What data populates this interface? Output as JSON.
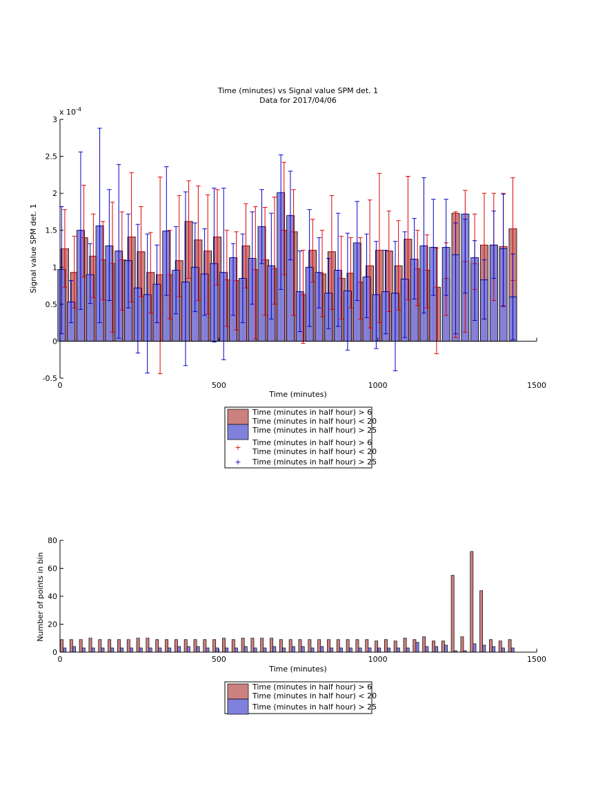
{
  "chart_data": [
    {
      "type": "bar",
      "title": "Time (minutes) vs Signal value SPM det. 1",
      "subtitle": "Data for 2017/04/06",
      "xlabel": "Time (minutes)",
      "ylabel": "Signal value SPM det. 1",
      "y_exponent_label": "x 10",
      "y_exponent": "-4",
      "xlim": [
        0,
        1500
      ],
      "ylim": [
        -0.5,
        3
      ],
      "xticks": [
        "0",
        "500",
        "1000",
        "1500"
      ],
      "yticks": [
        "-0.5",
        "0",
        "0.5",
        "1",
        "1.5",
        "2",
        "2.5",
        "3"
      ],
      "y_scale_factor": 0.0001,
      "grid": false,
      "legend_position": "below",
      "legend": [
        "Time (minutes in half hour) > 6",
        "Time (minutes in half hour) < 20",
        "Time (minutes in half hour) > 25",
        "Time (minutes in half hour) > 6",
        "Time (minutes in half hour) < 20",
        "Time (minutes in half hour) > 25"
      ],
      "colors": {
        "red_bar": "#cc8080",
        "red_err": "#dd0000",
        "blue_bar": "#8080dd",
        "blue_err": "#0000cc"
      },
      "x_red": [
        15,
        45,
        75,
        105,
        135,
        165,
        195,
        225,
        255,
        285,
        315,
        345,
        375,
        405,
        435,
        465,
        495,
        525,
        555,
        585,
        615,
        645,
        675,
        705,
        735,
        765,
        795,
        825,
        855,
        885,
        915,
        945,
        975,
        1005,
        1035,
        1065,
        1095,
        1125,
        1155,
        1185,
        1215,
        1245,
        1275,
        1305,
        1335,
        1365,
        1395,
        1425
      ],
      "series": [
        {
          "values": [
            1.25,
            0.93,
            1.4,
            1.15,
            1.1,
            1.05,
            1.1,
            1.41,
            1.21,
            0.93,
            0.9,
            0.9,
            1.09,
            1.62,
            1.37,
            1.22,
            1.41,
            0.83,
            0.82,
            1.29,
            0.97,
            1.1,
            0.98,
            1.5,
            1.48,
            0.63,
            1.23,
            0.91,
            1.21,
            0.85,
            0.92,
            0.8,
            1.02,
            1.23,
            1.22,
            1.02,
            1.38,
            0.98,
            0.96,
            0.73,
            0.85,
            1.73,
            1.08,
            1.05,
            1.3,
            1.3,
            1.28,
            1.52
          ],
          "err_low": [
            0.73,
            0.45,
            0.87,
            0.59,
            0.56,
            0.12,
            0.42,
            0.53,
            0.6,
            0.38,
            -0.44,
            0.3,
            0.6,
            0.85,
            0.55,
            0.37,
            0.76,
            0.2,
            0.15,
            0.72,
            0.03,
            0.35,
            0.5,
            0.9,
            0.35,
            -0.03,
            0.8,
            0.33,
            0.43,
            0.3,
            0.45,
            0.3,
            0.18,
            0.25,
            0.4,
            0.42,
            0.56,
            0.48,
            0.45,
            -0.17,
            0.35,
            0.05,
            0.12,
            0.7,
            0.3,
            0.55,
            0.48,
            0.82
          ],
          "err_high": [
            1.78,
            1.42,
            2.11,
            1.72,
            1.62,
            1.88,
            1.75,
            2.28,
            1.82,
            1.47,
            2.22,
            1.5,
            1.97,
            2.17,
            2.1,
            1.98,
            2.05,
            1.5,
            1.48,
            1.86,
            1.82,
            1.81,
            1.95,
            2.42,
            2.05,
            1.23,
            1.65,
            1.5,
            1.97,
            1.42,
            1.4,
            1.4,
            1.91,
            2.27,
            1.76,
            1.63,
            2.23,
            1.5,
            1.44,
            1.26,
            1.33,
            1.75,
            2.04,
            1.72,
            2.0,
            2.0,
            2.0,
            2.21
          ]
        },
        {
          "values": [
            0.97,
            0.53,
            1.5,
            0.9,
            1.56,
            1.29,
            1.22,
            1.09,
            0.72,
            0.63,
            0.77,
            1.49,
            0.96,
            0.8,
            1.0,
            0.91,
            1.05,
            0.93,
            1.13,
            0.85,
            1.12,
            1.55,
            1.02,
            2.01,
            1.7,
            0.67,
            1.0,
            0.93,
            0.65,
            0.96,
            0.68,
            1.33,
            0.87,
            0.63,
            0.67,
            0.65,
            0.84,
            1.11,
            1.29,
            1.27,
            1.27,
            1.17,
            1.72,
            1.13,
            0.83,
            1.3,
            1.25,
            0.6
          ],
          "err_low": [
            0.1,
            0.25,
            0.43,
            0.51,
            0.25,
            0.55,
            0.04,
            0.45,
            -0.16,
            -0.43,
            0.25,
            0.62,
            0.37,
            -0.33,
            0.4,
            0.35,
            -0.01,
            -0.25,
            0.35,
            0.25,
            0.5,
            1.05,
            0.3,
            0.7,
            1.1,
            0.13,
            0.2,
            0.45,
            0.17,
            0.2,
            -0.12,
            0.55,
            0.32,
            -0.1,
            0.1,
            -0.4,
            0.05,
            0.57,
            0.38,
            0.62,
            0.62,
            0.1,
            0.65,
            0.28,
            0.3,
            0.85,
            0.47,
            0.02
          ],
          "err_high": [
            1.82,
            0.82,
            2.56,
            1.32,
            2.88,
            2.05,
            2.39,
            1.72,
            1.58,
            1.45,
            1.3,
            2.36,
            1.55,
            2.02,
            1.6,
            1.52,
            2.07,
            2.07,
            1.32,
            1.45,
            1.75,
            2.05,
            1.73,
            2.52,
            2.3,
            1.22,
            1.78,
            1.4,
            1.12,
            1.73,
            1.46,
            1.89,
            1.45,
            1.35,
            1.23,
            1.35,
            1.48,
            1.66,
            2.21,
            1.92,
            1.92,
            1.6,
            1.65,
            1.36,
            1.1,
            1.76,
            1.99,
            1.18
          ]
        }
      ],
      "x_blue": [
        5,
        35,
        65,
        95,
        125,
        155,
        185,
        215,
        245,
        275,
        305,
        335,
        365,
        395,
        425,
        455,
        485,
        515,
        545,
        575,
        605,
        635,
        665,
        695,
        725,
        755,
        785,
        815,
        845,
        875,
        905,
        935,
        965,
        995,
        1025,
        1055,
        1085,
        1115,
        1145,
        1175,
        1215,
        1245,
        1275,
        1305,
        1335,
        1365,
        1395,
        1425
      ]
    },
    {
      "type": "bar",
      "xlabel": "Time (minutes)",
      "ylabel": "Number of points in bin",
      "xlim": [
        0,
        1500
      ],
      "ylim": [
        0,
        80
      ],
      "xticks": [
        "0",
        "500",
        "1000",
        "1500"
      ],
      "yticks": [
        "0",
        "20",
        "40",
        "60",
        "80"
      ],
      "grid": false,
      "legend_position": "below",
      "legend": [
        "Time (minutes in half hour) > 6",
        "Time (minutes in half hour) < 20",
        "Time (minutes in half hour) > 25"
      ],
      "x": [
        0,
        30,
        60,
        90,
        120,
        150,
        180,
        210,
        240,
        270,
        300,
        330,
        360,
        390,
        420,
        450,
        480,
        510,
        540,
        570,
        600,
        630,
        660,
        690,
        720,
        750,
        780,
        810,
        840,
        870,
        900,
        930,
        960,
        990,
        1020,
        1050,
        1080,
        1110,
        1140,
        1170,
        1200,
        1230,
        1260,
        1290,
        1320,
        1350,
        1380,
        1410
      ],
      "series": [
        {
          "values": [
            9,
            9,
            9,
            10,
            9,
            9,
            9,
            9,
            10,
            10,
            9,
            9,
            9,
            9,
            9,
            9,
            9,
            10,
            9,
            10,
            10,
            10,
            10,
            9,
            9,
            9,
            9,
            9,
            9,
            9,
            9,
            9,
            9,
            8,
            9,
            8,
            10,
            9,
            11,
            8,
            8,
            55,
            11,
            72,
            44,
            9,
            8,
            9
          ]
        },
        {
          "values": [
            3,
            4,
            3,
            3,
            3,
            3,
            3,
            3,
            3,
            3,
            3,
            3,
            4,
            4,
            4,
            3,
            3,
            3,
            3,
            4,
            3,
            3,
            4,
            3,
            4,
            4,
            3,
            4,
            3,
            3,
            3,
            3,
            3,
            3,
            3,
            3,
            3,
            7,
            4,
            4,
            5,
            1,
            1,
            6,
            5,
            4,
            3,
            3
          ]
        }
      ]
    }
  ]
}
